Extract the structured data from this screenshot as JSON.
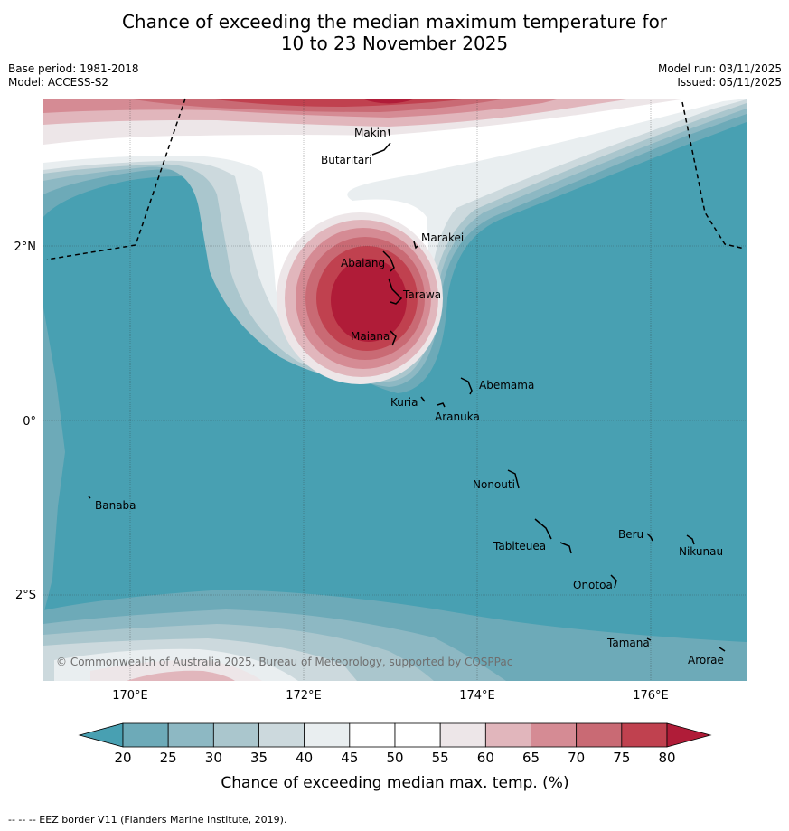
{
  "title": {
    "line1": "Chance of exceeding the median maximum temperature for",
    "line2": "10 to 23 November 2025"
  },
  "meta": {
    "base_period": "Base period: 1981-2018",
    "model": "Model: ACCESS-S2",
    "model_run": "Model run: 03/11/2025",
    "issued": "Issued: 05/11/2025"
  },
  "axes": {
    "x_ticks": [
      "170°E",
      "172°E",
      "174°E",
      "176°E"
    ],
    "y_ticks": [
      "2°N",
      "0°",
      "2°S"
    ]
  },
  "places": {
    "makin": "Makin",
    "butaritari": "Butaritari",
    "marakei": "Marakei",
    "abaiang": "Abaiang",
    "tarawa": "Tarawa",
    "maiana": "Maiana",
    "abemama": "Abemama",
    "kuria": "Kuria",
    "aranuka": "Aranuka",
    "nonouti": "Nonouti",
    "banaba": "Banaba",
    "beru": "Beru",
    "nikunau": "Nikunau",
    "tabiteuea": "Tabiteuea",
    "onotoa": "Onotoa",
    "tamana": "Tamana",
    "arorae": "Arorae"
  },
  "copyright": "© Commonwealth of Australia 2025, Bureau of Meteorology, supported by COSPPac",
  "colorbar": {
    "ticks": [
      "20",
      "25",
      "30",
      "35",
      "40",
      "45",
      "50",
      "55",
      "60",
      "65",
      "70",
      "75",
      "80"
    ],
    "colors": [
      "#6daab8",
      "#8db8c3",
      "#aac6cd",
      "#ccd9dd",
      "#e9eef0",
      "#ffffff",
      "#ffffff",
      "#ede6e8",
      "#e1b6bc",
      "#d58b94",
      "#c96a74",
      "#c0414f"
    ],
    "under_color": "#48a0b2",
    "over_color": "#b01c38",
    "label": "Chance of exceeding median max. temp. (%)"
  },
  "footnote": "-- -- -- EEZ border V11 (Flanders Marine Institute, 2019)."
}
